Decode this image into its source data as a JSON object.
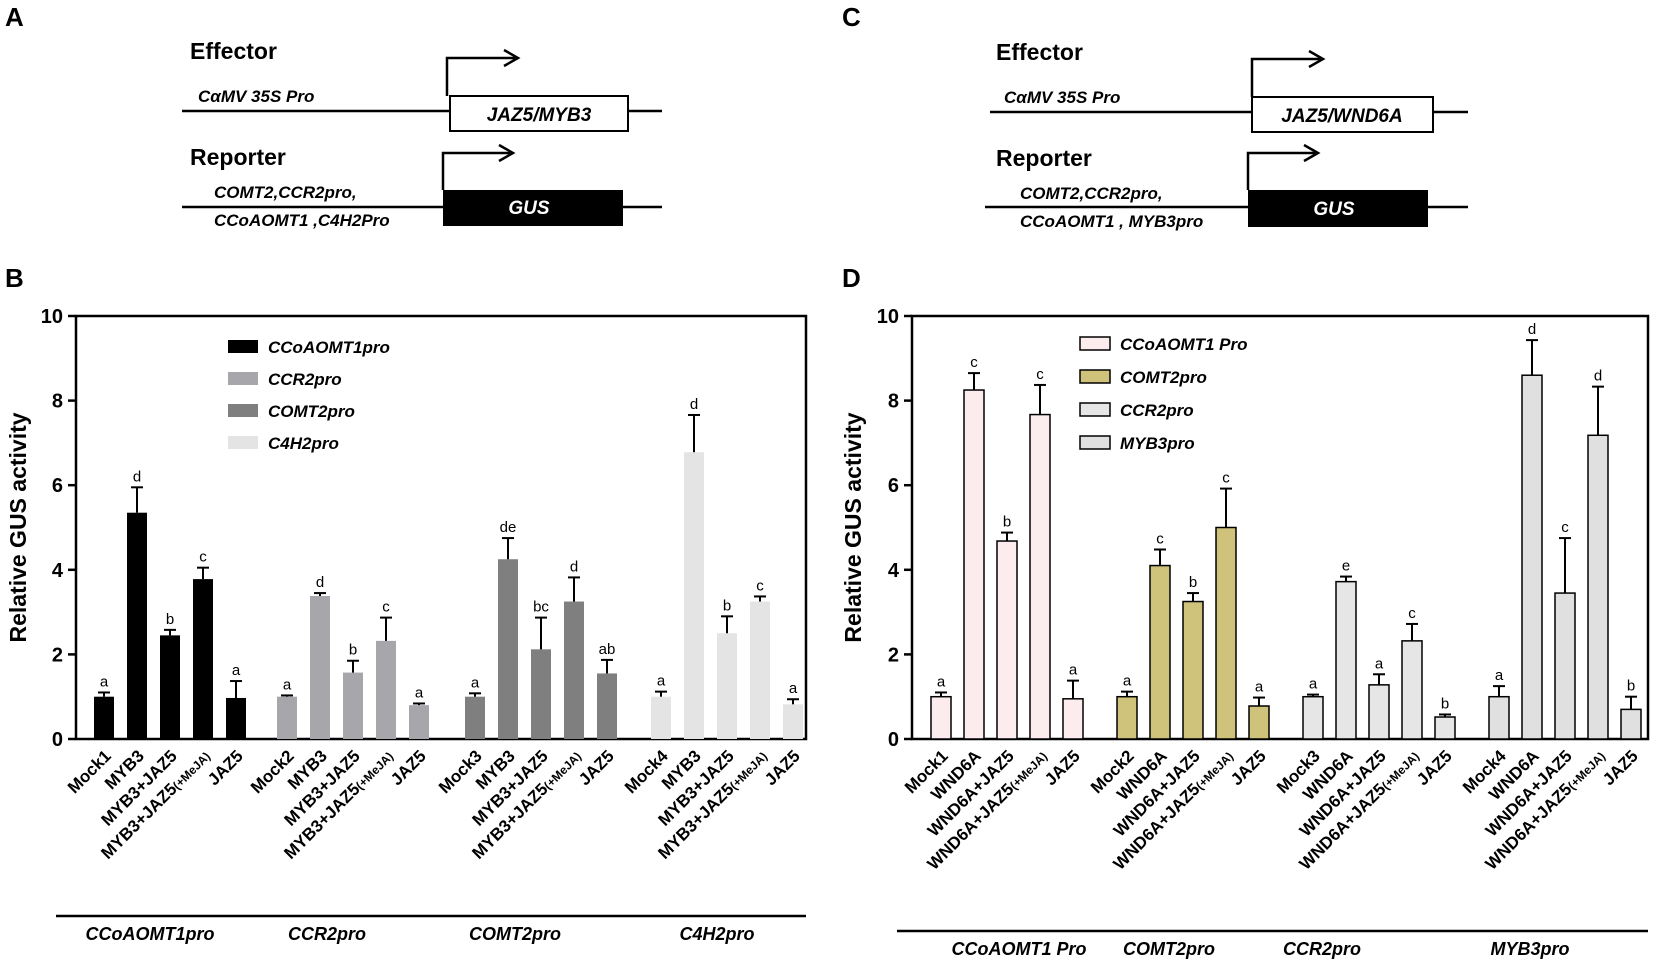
{
  "panel_labels": {
    "a": "A",
    "b": "B",
    "c": "C",
    "d": "D"
  },
  "schematic_a": {
    "effector_title": "Effector",
    "effector_promoter": "CαMV 35S Pro",
    "effector_box": "JAZ5/MYB3",
    "reporter_title": "Reporter",
    "reporter_promoter_line1": "COMT2,CCR2pro,",
    "reporter_promoter_line2": "CCoAOMT1 ,C4H2Pro",
    "reporter_box": "GUS"
  },
  "schematic_c": {
    "effector_title": "Effector",
    "effector_promoter": "CαMV 35S Pro",
    "effector_box": "JAZ5/WND6A",
    "reporter_title": "Reporter",
    "reporter_promoter_line1": "COMT2,CCR2pro,",
    "reporter_promoter_line2": "CCoAOMT1 , MYB3pro",
    "reporter_box": "GUS"
  },
  "chart_data": [
    {
      "panel": "B",
      "type": "bar",
      "ylabel": "Relative GUS activity",
      "xlabel": "",
      "ylim": [
        0,
        10
      ],
      "yticks": [
        0,
        2,
        4,
        6,
        8,
        10
      ],
      "legend_position": "top-center",
      "series": [
        {
          "name": "CCoAOMT1pro",
          "color": "#000000",
          "group_label": "CCoAOMT1pro",
          "categories": [
            "Mock1",
            "MYB3",
            "MYB3+JAZ5",
            "MYB3+JAZ5",
            "JAZ5"
          ],
          "suffixes": [
            "",
            "",
            "",
            "(+MeJA)",
            ""
          ],
          "values": [
            1.0,
            5.35,
            2.45,
            3.78,
            0.97
          ],
          "errors": [
            0.1,
            0.6,
            0.13,
            0.27,
            0.4
          ],
          "letters": [
            "a",
            "d",
            "b",
            "c",
            "a"
          ]
        },
        {
          "name": "CCR2pro",
          "color": "#a6a6ab",
          "group_label": "CCR2pro",
          "categories": [
            "Mock2",
            "MYB3",
            "MYB3+JAZ5",
            "MYB3+JAZ5",
            "JAZ5"
          ],
          "suffixes": [
            "",
            "",
            "",
            "(+MeJA)",
            ""
          ],
          "values": [
            1.0,
            3.38,
            1.57,
            2.32,
            0.8
          ],
          "errors": [
            0.03,
            0.07,
            0.28,
            0.55,
            0.04
          ],
          "letters": [
            "a",
            "d",
            "b",
            "c",
            "a"
          ]
        },
        {
          "name": "COMT2pro",
          "color": "#7f7f7f",
          "group_label": "COMT2pro",
          "categories": [
            "Mock3",
            "MYB3",
            "MYB3+JAZ5",
            "MYB3+JAZ5",
            "JAZ5"
          ],
          "suffixes": [
            "",
            "",
            "",
            "(+MeJA)",
            ""
          ],
          "values": [
            1.0,
            4.25,
            2.12,
            3.25,
            1.55
          ],
          "errors": [
            0.08,
            0.5,
            0.75,
            0.57,
            0.32
          ],
          "letters": [
            "a",
            "de",
            "bc",
            "d",
            "ab"
          ]
        },
        {
          "name": "C4H2pro",
          "color": "#e4e4e4",
          "group_label": "C4H2pro",
          "categories": [
            "Mock4",
            "MYB3",
            "MYB3+JAZ5",
            "MYB3+JAZ5",
            "JAZ5"
          ],
          "suffixes": [
            "",
            "",
            "",
            "(+MeJA)",
            ""
          ],
          "values": [
            1.0,
            6.78,
            2.5,
            3.25,
            0.82
          ],
          "errors": [
            0.12,
            0.88,
            0.4,
            0.12,
            0.12
          ],
          "letters": [
            "a",
            "d",
            "b",
            "c",
            "a"
          ]
        }
      ]
    },
    {
      "panel": "D",
      "type": "bar",
      "ylabel": "Relative GUS activity",
      "xlabel": "",
      "ylim": [
        0,
        10
      ],
      "yticks": [
        0,
        2,
        4,
        6,
        8,
        10
      ],
      "legend_position": "top-center",
      "series": [
        {
          "name": "CCoAOMT1 Pro",
          "color": "#fdecee",
          "group_label": "CCoAOMT1 Pro",
          "categories": [
            "Mock1",
            "WND6A",
            "WND6A+JAZ5",
            "WND6A+JAZ5",
            "JAZ5"
          ],
          "suffixes": [
            "",
            "",
            "",
            "(+MeJA)",
            ""
          ],
          "values": [
            1.0,
            8.25,
            4.68,
            7.67,
            0.95
          ],
          "errors": [
            0.1,
            0.4,
            0.2,
            0.7,
            0.43
          ],
          "letters": [
            "a",
            "c",
            "b",
            "c",
            "a"
          ]
        },
        {
          "name": "COMT2pro",
          "color": "#cfc27a",
          "group_label": "COMT2pro",
          "categories": [
            "Mock2",
            "WND6A",
            "WND6A+JAZ5",
            "WND6A+JAZ5",
            "JAZ5"
          ],
          "suffixes": [
            "",
            "",
            "",
            "(+MeJA)",
            ""
          ],
          "values": [
            1.0,
            4.1,
            3.25,
            5.0,
            0.78
          ],
          "errors": [
            0.12,
            0.38,
            0.2,
            0.92,
            0.2
          ],
          "letters": [
            "a",
            "c",
            "b",
            "c",
            "a"
          ]
        },
        {
          "name": "CCR2pro",
          "color": "#e6e6e6",
          "group_label": "CCR2pro",
          "categories": [
            "Mock3",
            "WND6A",
            "WND6A+JAZ5",
            "WND6A+JAZ5",
            "JAZ5"
          ],
          "suffixes": [
            "",
            "",
            "",
            "(+MeJA)",
            ""
          ],
          "values": [
            1.0,
            3.72,
            1.28,
            2.32,
            0.52
          ],
          "errors": [
            0.05,
            0.12,
            0.25,
            0.4,
            0.06
          ],
          "letters": [
            "a",
            "e",
            "a",
            "c",
            "b"
          ]
        },
        {
          "name": "MYB3pro",
          "color": "#e0e0e0",
          "group_label": "MYB3pro",
          "categories": [
            "Mock4",
            "WND6A",
            "WND6A+JAZ5",
            "WND6A+JAZ5",
            "JAZ5"
          ],
          "suffixes": [
            "",
            "",
            "",
            "(+MeJA)",
            ""
          ],
          "values": [
            1.0,
            8.6,
            3.45,
            7.18,
            0.7
          ],
          "errors": [
            0.25,
            0.83,
            1.3,
            1.15,
            0.3
          ],
          "letters": [
            "a",
            "d",
            "c",
            "d",
            "b"
          ]
        }
      ]
    }
  ]
}
